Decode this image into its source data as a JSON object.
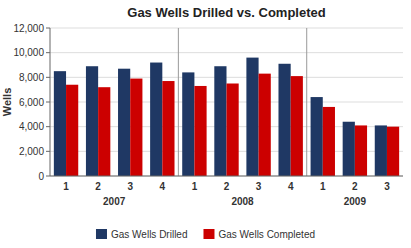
{
  "chart_data": {
    "type": "bar",
    "title": "Gas Wells Drilled vs. Completed",
    "y_label": "Wells",
    "categories": [
      "1",
      "2",
      "3",
      "4",
      "1",
      "2",
      "3",
      "4",
      "1",
      "2",
      "3"
    ],
    "category_groups": [
      {
        "label": "2007",
        "count": 4
      },
      {
        "label": "2008",
        "count": 4
      },
      {
        "label": "2009",
        "count": 3
      }
    ],
    "series": [
      {
        "name": "Gas Wells Drilled",
        "color": "#1F3864",
        "values": [
          8500,
          8900,
          8700,
          9200,
          8400,
          8900,
          9600,
          9100,
          6400,
          4400,
          4100
        ]
      },
      {
        "name": "Gas Wells Completed",
        "color": "#CC0000",
        "values": [
          7400,
          7200,
          7900,
          7700,
          7300,
          7500,
          8300,
          8100,
          5600,
          4100,
          4000
        ]
      }
    ],
    "ylim": [
      0,
      12000
    ],
    "yticks": [
      0,
      {
        "value": 2000,
        "label": "2,000"
      },
      {
        "value": 4000,
        "label": "4,000"
      },
      {
        "value": 6000,
        "label": "6,000"
      },
      {
        "value": 8000,
        "label": "8,000"
      },
      {
        "value": 10000,
        "label": "10,000"
      },
      {
        "value": 12000,
        "label": "12,000"
      }
    ],
    "grid": true,
    "legend": "bottom"
  }
}
